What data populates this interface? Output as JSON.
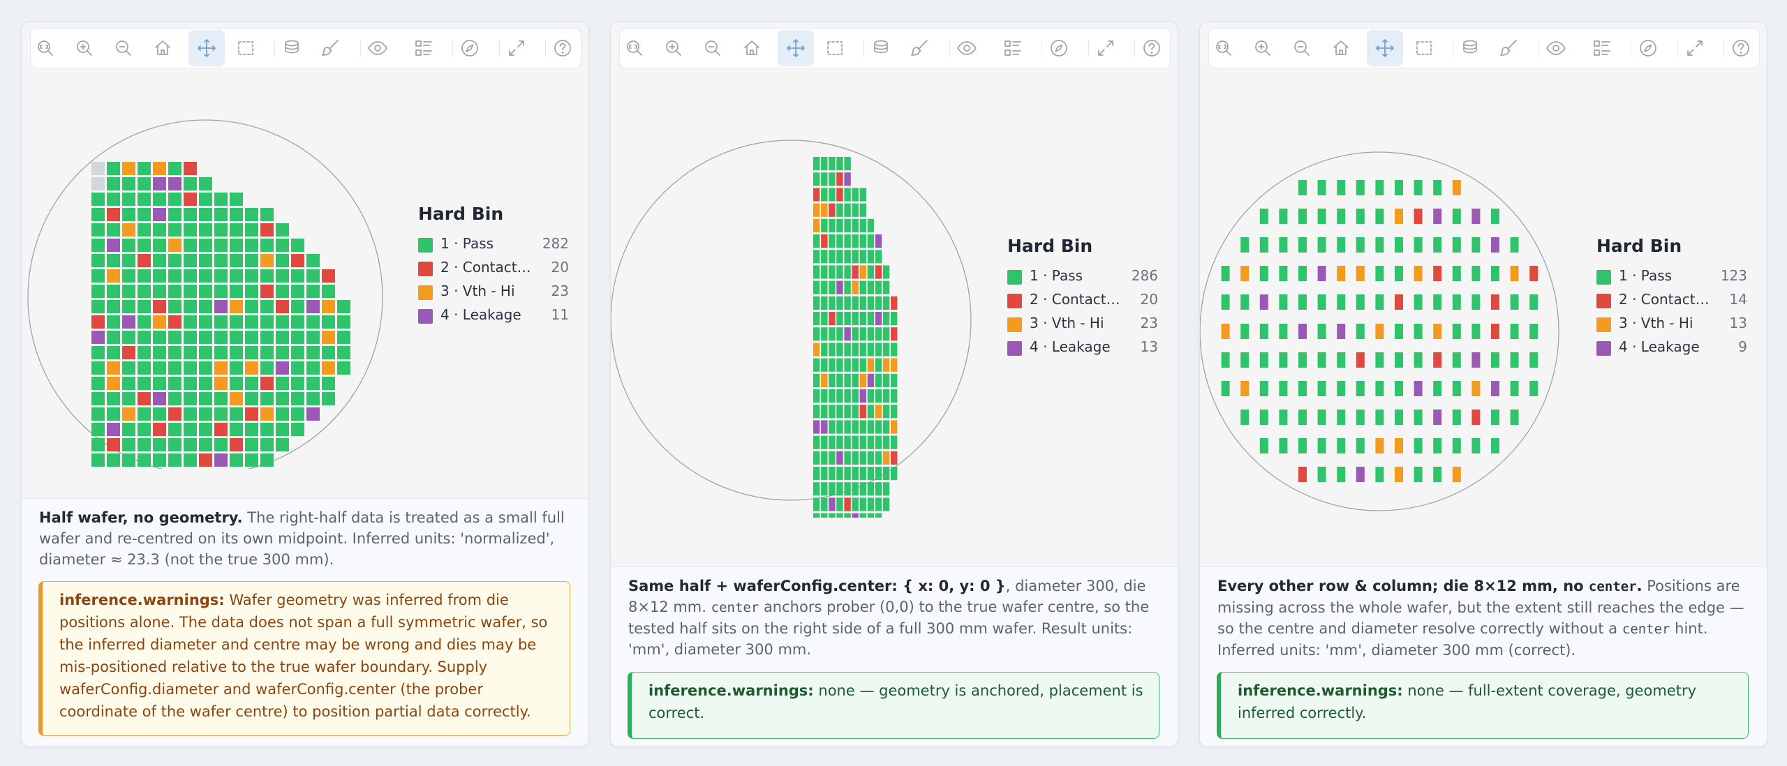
{
  "colors": {
    "pass": "#2fc46b",
    "contact": "#e0493f",
    "vth": "#f29b1f",
    "leakage": "#9b59b6",
    "missing": "#d3d6db"
  },
  "toolbar_icons": [
    "zoom-fit-icon",
    "zoom-in-icon",
    "zoom-out-icon",
    "home-icon",
    "pan-icon",
    "box-select-icon",
    "layers-icon",
    "brush-icon",
    "eye-icon",
    "list-icon",
    "compass-icon",
    "fullscreen-icon",
    "help-icon"
  ],
  "panels": [
    {
      "legend": {
        "title": "Hard Bin",
        "items": [
          {
            "label": "1 · Pass",
            "count": "282"
          },
          {
            "label": "2 · Contact ...",
            "count": "20"
          },
          {
            "label": "3 · Vth - Hi",
            "count": "23"
          },
          {
            "label": "4 · Leakage",
            "count": "11"
          }
        ]
      },
      "desc_bold": "Half wafer, no geometry.",
      "desc_rest": " The right-half data is treated as a small full wafer and re-centred on its own midpoint. Inferred units: 'normalized', diameter ≈ 23.3 (not the true 300 mm).",
      "note_label": "inference.warnings:",
      "note_text": " Wafer geometry was inferred from die positions alone. The data does not span a full symmetric wafer, so the inferred diameter and centre may be wrong and dies may be mis-positioned relative to the true wafer boundary. Supply waferConfig.diameter and waferConfig.center (the prober coordinate of the wafer centre) to position partial data correctly."
    },
    {
      "legend": {
        "title": "Hard Bin",
        "items": [
          {
            "label": "1 · Pass",
            "count": "286"
          },
          {
            "label": "2 · Contact ...",
            "count": "20"
          },
          {
            "label": "3 · Vth - Hi",
            "count": "23"
          },
          {
            "label": "4 · Leakage",
            "count": "13"
          }
        ]
      },
      "desc_bold": "Same half + waferConfig.center: { x: 0, y: 0 }",
      "desc_rest1": ", diameter 300, die 8×12 mm. ",
      "desc_code": "center",
      "desc_rest2": " anchors prober (0,0) to the true wafer centre, so the tested half sits on the right side of a full 300 mm wafer. Result units: 'mm', diameter 300 mm.",
      "note_label": "inference.warnings:",
      "note_text": " none — geometry is anchored, placement is correct."
    },
    {
      "legend": {
        "title": "Hard Bin",
        "items": [
          {
            "label": "1 · Pass",
            "count": "123"
          },
          {
            "label": "2 · Contact ...",
            "count": "14"
          },
          {
            "label": "3 · Vth - Hi",
            "count": "13"
          },
          {
            "label": "4 · Leakage",
            "count": "9"
          }
        ]
      },
      "desc_bold": "Every other row & column; die 8×12 mm, no ",
      "desc_code_bold": "center",
      "desc_bold2": ".",
      "desc_rest1": " Positions are missing across the whole wafer, but the extent still reaches the edge — so the centre and diameter resolve correctly without a ",
      "desc_code": "center",
      "desc_rest2": " hint. Inferred units: 'mm', diameter 300 mm (correct).",
      "note_label": "inference.warnings:",
      "note_text": " none — full-extent coverage, geometry inferred correctly."
    }
  ]
}
